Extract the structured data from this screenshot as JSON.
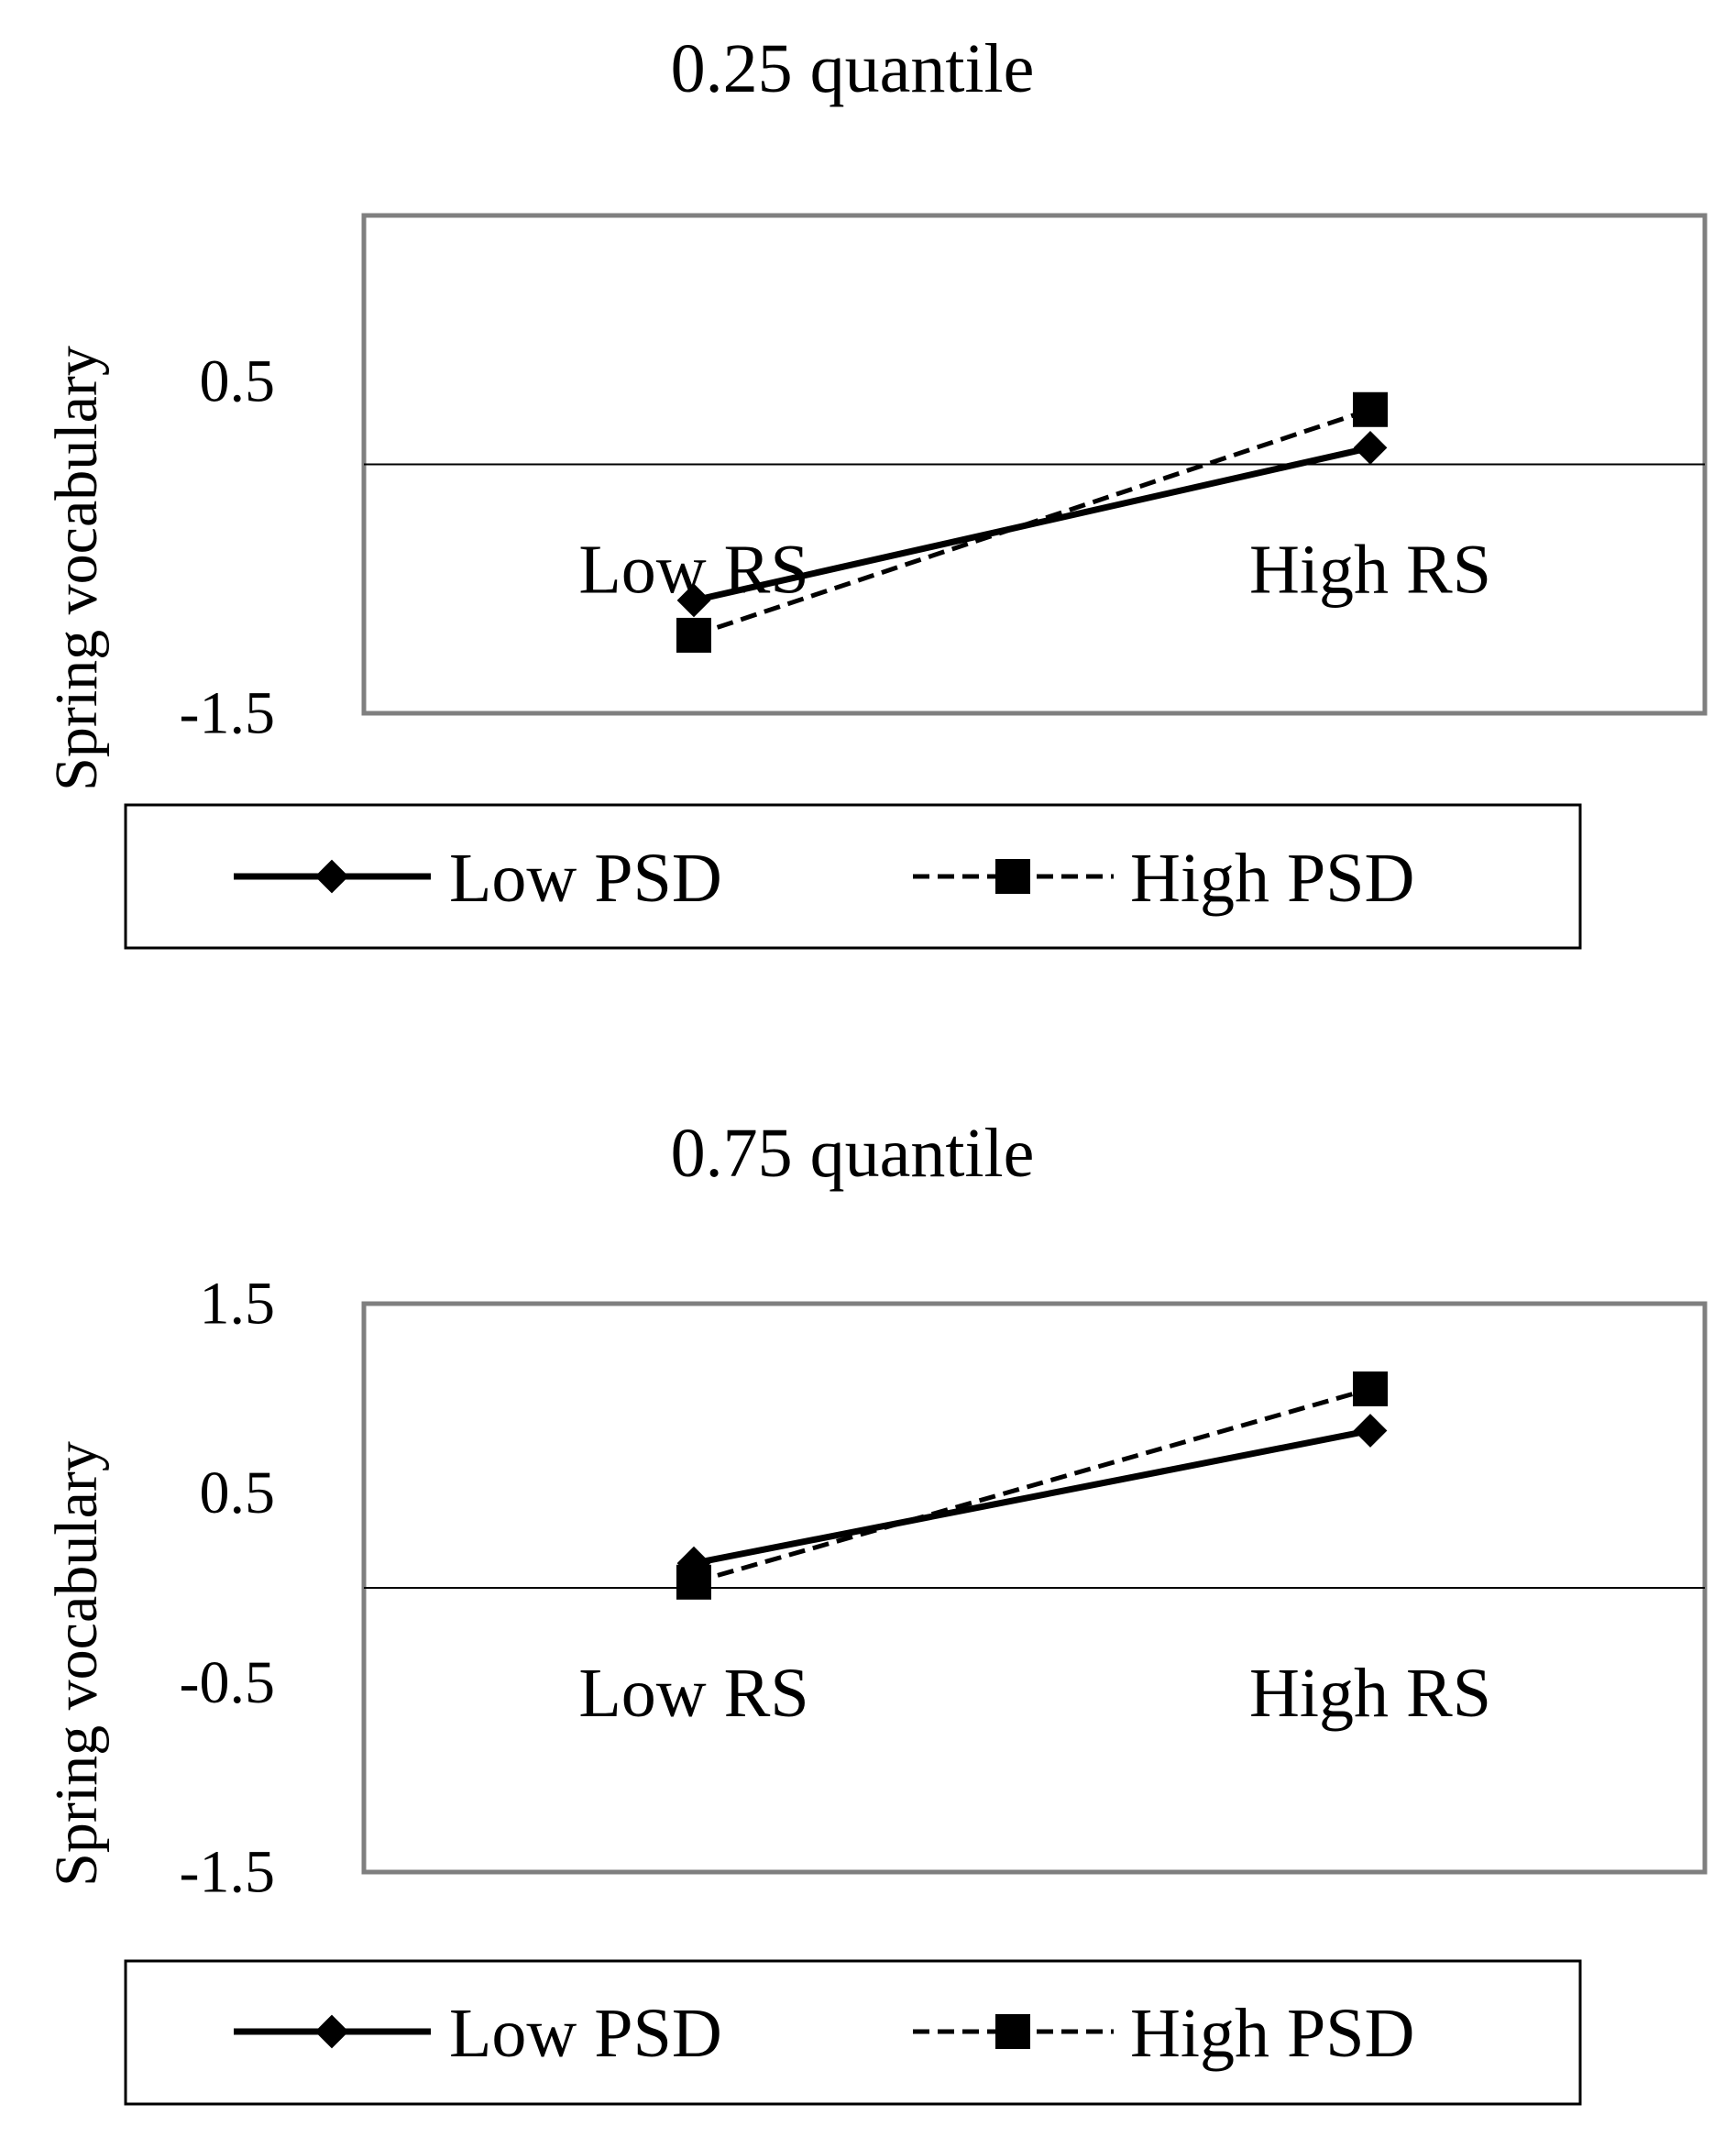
{
  "figure": {
    "line_color": "#000000",
    "frame_color": "#7f7f7f",
    "background": "#ffffff"
  },
  "chart_data": [
    {
      "type": "line",
      "title": "0.25 quantile",
      "xlabel": "",
      "ylabel": "Spring vocabulary",
      "categories": [
        "Low RS",
        "High RS"
      ],
      "ylim": [
        -1.5,
        1.5
      ],
      "yticks": [
        "0.5",
        "-1.5"
      ],
      "grid": false,
      "series": [
        {
          "name": "Low PSD",
          "values": [
            -0.82,
            0.1
          ],
          "marker": "diamond",
          "line": "solid"
        },
        {
          "name": "High PSD",
          "values": [
            -1.03,
            0.33
          ],
          "marker": "square",
          "line": "dashed"
        }
      ],
      "legend": {
        "position": "bottom",
        "entries": [
          "Low PSD",
          "High PSD"
        ]
      }
    },
    {
      "type": "line",
      "title": "0.75 quantile",
      "xlabel": "",
      "ylabel": "Spring vocabulary",
      "categories": [
        "Low RS",
        "High RS"
      ],
      "ylim": [
        -1.5,
        1.5
      ],
      "yticks": [
        "1.5",
        "0.5",
        "-0.5",
        "-1.5"
      ],
      "grid": false,
      "series": [
        {
          "name": "Low PSD",
          "values": [
            0.13,
            0.83
          ],
          "marker": "diamond",
          "line": "solid"
        },
        {
          "name": "High PSD",
          "values": [
            0.03,
            1.05
          ],
          "marker": "square",
          "line": "dashed"
        }
      ],
      "legend": {
        "position": "bottom",
        "entries": [
          "Low PSD",
          "High PSD"
        ]
      }
    }
  ]
}
